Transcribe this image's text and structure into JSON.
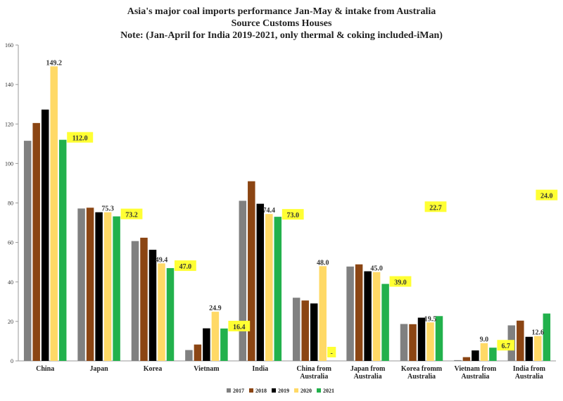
{
  "chart_data": {
    "type": "bar",
    "title": "Asia's major coal imports performance Jan-May & intake from Australia",
    "subtitle": "Source Customs Houses",
    "note": "Note: (Jan-April for India 2019-2021, only thermal & coking included-iMan)",
    "categories": [
      "China",
      "Japan",
      "Korea",
      "Vietnam",
      "India",
      "China from Australia",
      "Japan from Australia",
      "Korea fromm Australia",
      "Vietnam from Australia",
      "India from Australia"
    ],
    "series": [
      {
        "name": "2017",
        "color": "#808080",
        "values": [
          111.5,
          77.2,
          60.7,
          5.5,
          81.1,
          32.0,
          47.8,
          18.7,
          0.4,
          18.0
        ]
      },
      {
        "name": "2018",
        "color": "#8b4513",
        "values": [
          120.5,
          77.6,
          62.4,
          8.3,
          91.0,
          30.6,
          48.9,
          18.6,
          1.9,
          20.4
        ]
      },
      {
        "name": "2019",
        "color": "#000000",
        "values": [
          127.3,
          75.3,
          56.3,
          16.5,
          79.6,
          29.1,
          45.4,
          21.9,
          5.3,
          12.2
        ]
      },
      {
        "name": "2020",
        "color": "#ffd966",
        "values": [
          149.2,
          75.3,
          49.4,
          24.9,
          74.4,
          48.0,
          45.0,
          19.5,
          9.0,
          12.6
        ]
      },
      {
        "name": "2021",
        "color": "#22b14c",
        "values": [
          112.0,
          73.2,
          47.0,
          16.4,
          73.0,
          0,
          39.0,
          22.7,
          6.7,
          24.0
        ]
      }
    ],
    "data_labels": [
      {
        "category": 0,
        "series": 3,
        "text": "149.2",
        "highlight": false
      },
      {
        "category": 0,
        "series": 4,
        "text": "112.0",
        "highlight": true
      },
      {
        "category": 1,
        "series": 3,
        "text": "75.3",
        "highlight": false
      },
      {
        "category": 1,
        "series": 4,
        "text": "73.2",
        "highlight": true
      },
      {
        "category": 2,
        "series": 3,
        "text": "49.4",
        "highlight": false
      },
      {
        "category": 2,
        "series": 4,
        "text": "47.0",
        "highlight": true
      },
      {
        "category": 3,
        "series": 3,
        "text": "24.9",
        "highlight": false
      },
      {
        "category": 3,
        "series": 4,
        "text": "16.4",
        "highlight": true
      },
      {
        "category": 4,
        "series": 3,
        "text": "74.4",
        "highlight": false
      },
      {
        "category": 4,
        "series": 4,
        "text": "73.0",
        "highlight": true
      },
      {
        "category": 5,
        "series": 3,
        "text": "48.0",
        "highlight": false
      },
      {
        "category": 5,
        "series": 4,
        "text": "-",
        "highlight": true
      },
      {
        "category": 6,
        "series": 3,
        "text": "45.0",
        "highlight": false
      },
      {
        "category": 6,
        "series": 4,
        "text": "39.0",
        "highlight": true
      },
      {
        "category": 7,
        "series": 3,
        "text": "19.5",
        "highlight": false
      },
      {
        "category": 7,
        "series": 4,
        "text": "22.7",
        "highlight": true
      },
      {
        "category": 8,
        "series": 3,
        "text": "9.0",
        "highlight": false
      },
      {
        "category": 8,
        "series": 4,
        "text": "6.7",
        "highlight": true
      },
      {
        "category": 9,
        "series": 3,
        "text": "12.6",
        "highlight": false
      },
      {
        "category": 9,
        "series": 4,
        "text": "24.0",
        "highlight": true
      }
    ],
    "ylim": [
      0,
      160
    ],
    "yticks": [
      0,
      20,
      40,
      60,
      80,
      100,
      120,
      140,
      160
    ],
    "grid": false,
    "legend_position": "bottom"
  }
}
